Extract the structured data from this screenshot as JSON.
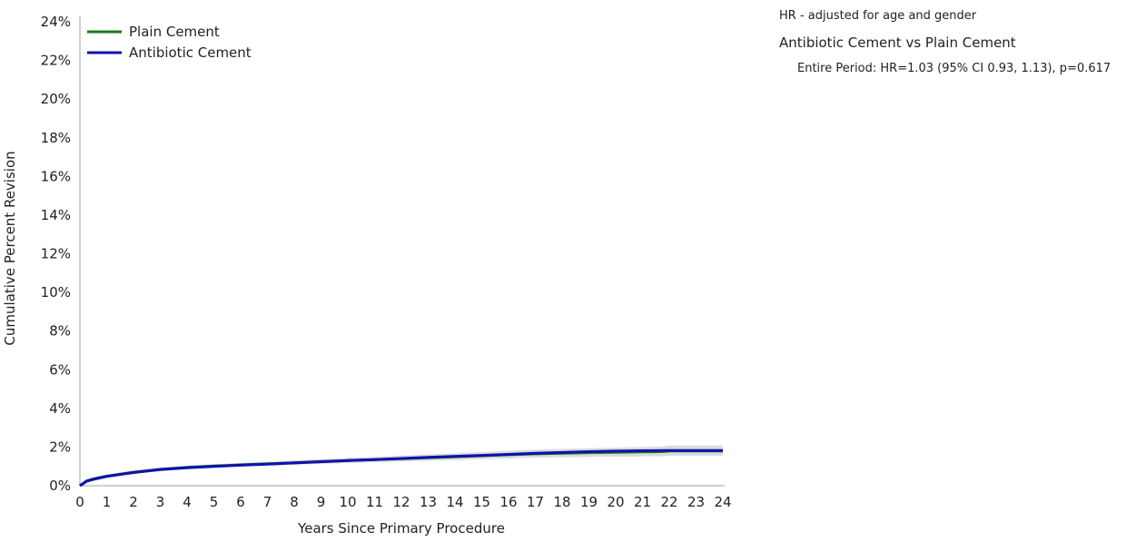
{
  "chart_data": {
    "type": "line",
    "xlabel": "Years Since Primary Procedure",
    "ylabel": "Cumulative Percent Revision",
    "xlim": [
      0,
      24
    ],
    "ylim": [
      0,
      24
    ],
    "x_ticks": [
      "0",
      "1",
      "2",
      "3",
      "4",
      "5",
      "6",
      "7",
      "8",
      "9",
      "10",
      "11",
      "12",
      "13",
      "14",
      "15",
      "16",
      "17",
      "18",
      "19",
      "20",
      "21",
      "22",
      "23",
      "24"
    ],
    "y_ticks": [
      "0%",
      "2%",
      "4%",
      "6%",
      "8%",
      "10%",
      "12%",
      "14%",
      "16%",
      "18%",
      "20%",
      "22%",
      "24%"
    ],
    "grid": false,
    "legend_position": "top-left",
    "annotations": [
      "HR - adjusted for age and gender",
      "Antibiotic Cement vs Plain Cement",
      "Entire Period: HR=1.03 (95% CI 0.93, 1.13), p=0.617"
    ],
    "series": [
      {
        "name": "Plain Cement",
        "color": "#1a7a1a",
        "x": [
          0,
          0.25,
          0.5,
          1,
          2,
          3,
          4,
          5,
          6,
          7,
          8,
          9,
          10,
          11,
          12,
          13,
          14,
          15,
          16,
          17,
          18,
          19,
          20,
          21,
          21.7,
          22,
          23,
          24
        ],
        "y": [
          0,
          0.25,
          0.35,
          0.5,
          0.7,
          0.85,
          0.95,
          1.02,
          1.08,
          1.13,
          1.19,
          1.25,
          1.3,
          1.35,
          1.4,
          1.45,
          1.5,
          1.55,
          1.6,
          1.65,
          1.68,
          1.71,
          1.73,
          1.75,
          1.76,
          1.8,
          1.8,
          1.8
        ],
        "ci_lower": [
          0,
          0.2,
          0.3,
          0.45,
          0.64,
          0.78,
          0.88,
          0.94,
          0.99,
          1.03,
          1.08,
          1.13,
          1.17,
          1.21,
          1.25,
          1.29,
          1.33,
          1.37,
          1.41,
          1.45,
          1.47,
          1.49,
          1.5,
          1.51,
          1.52,
          1.55,
          1.55,
          1.55
        ],
        "ci_upper": [
          0,
          0.3,
          0.42,
          0.56,
          0.77,
          0.93,
          1.03,
          1.11,
          1.18,
          1.24,
          1.31,
          1.38,
          1.44,
          1.5,
          1.56,
          1.62,
          1.68,
          1.74,
          1.8,
          1.86,
          1.9,
          1.94,
          1.97,
          2.0,
          2.02,
          2.08,
          2.08,
          2.08
        ]
      },
      {
        "name": "Antibiotic Cement",
        "color": "#1010b0",
        "x": [
          0,
          0.25,
          0.5,
          1,
          2,
          3,
          4,
          5,
          6,
          7,
          8,
          9,
          10,
          11,
          12,
          13,
          14,
          15,
          16,
          17,
          18,
          19,
          20,
          21,
          22,
          23,
          24
        ],
        "y": [
          0,
          0.23,
          0.33,
          0.48,
          0.68,
          0.83,
          0.93,
          1.0,
          1.06,
          1.12,
          1.18,
          1.24,
          1.3,
          1.35,
          1.41,
          1.47,
          1.52,
          1.57,
          1.62,
          1.68,
          1.72,
          1.76,
          1.79,
          1.81,
          1.82,
          1.82,
          1.82
        ],
        "ci_lower": [
          0,
          0.21,
          0.31,
          0.46,
          0.66,
          0.81,
          0.91,
          0.98,
          1.04,
          1.09,
          1.15,
          1.21,
          1.26,
          1.31,
          1.37,
          1.42,
          1.47,
          1.52,
          1.56,
          1.61,
          1.65,
          1.68,
          1.7,
          1.72,
          1.72,
          1.72,
          1.72
        ],
        "ci_upper": [
          0,
          0.25,
          0.35,
          0.5,
          0.7,
          0.85,
          0.95,
          1.02,
          1.08,
          1.15,
          1.21,
          1.27,
          1.34,
          1.39,
          1.45,
          1.52,
          1.57,
          1.62,
          1.68,
          1.75,
          1.79,
          1.84,
          1.88,
          1.9,
          1.92,
          1.92,
          1.92
        ]
      }
    ]
  }
}
